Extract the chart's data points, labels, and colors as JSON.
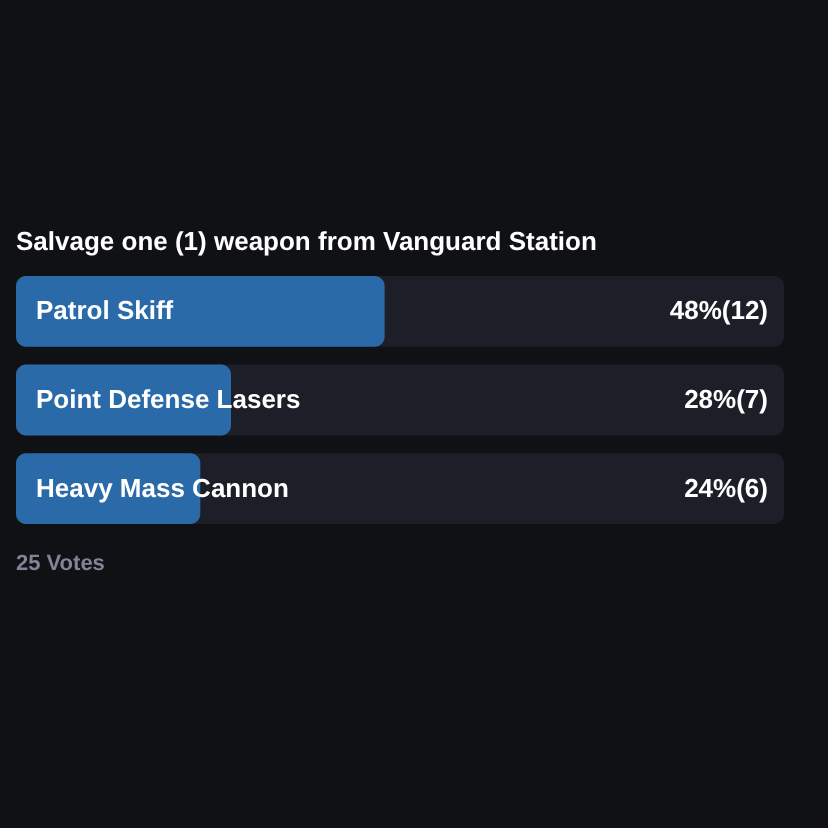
{
  "chart_data": {
    "type": "bar",
    "orientation": "horizontal",
    "title": "Salvage one (1) weapon from Vanguard Station",
    "categories": [
      "Patrol Skiff",
      "Point Defense Lasers",
      "Heavy Mass Cannon"
    ],
    "values": [
      48,
      28,
      24
    ],
    "value_labels": [
      "48%(12)",
      "28%(7)",
      "24%(6)"
    ],
    "color": "#2a6aa8",
    "xlim": [
      0,
      100
    ],
    "annotations": [
      "25 Votes"
    ]
  }
}
